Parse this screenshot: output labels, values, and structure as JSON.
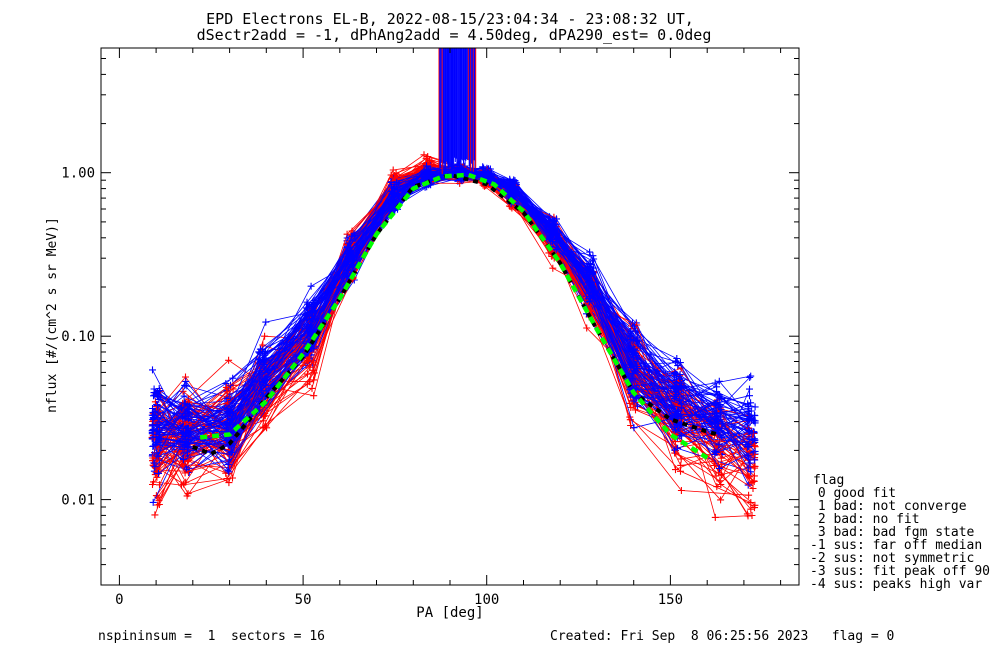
{
  "title": {
    "line1": "EPD Electrons EL-B, 2022-08-15/23:04:34 - 23:08:32 UT,",
    "line2": "dSectr2add = -1, dPhAng2add = 4.50deg, dPA290_est=   0.0deg"
  },
  "footer": {
    "left": "nspininsum =  1  sectors = 16",
    "right": "Created: Fri Sep  8 06:25:56 2023   flag = 0"
  },
  "flag_legend": {
    "heading": "flag",
    "items": [
      " 0 good fit",
      " 1 bad: not converge",
      " 2 bad: no fit",
      " 3 bad: bad fgm state",
      "-1 sus: far off median",
      "-2 sus: not symmetric",
      "-3 sus: fit peak off 90",
      "-4 sus: peaks high var"
    ]
  },
  "colors": {
    "red": "#ff0000",
    "blue": "#0000ff",
    "fit_green": "#00ff00",
    "median_black": "#000000",
    "axes": "#000000"
  },
  "chart_data": {
    "type": "line",
    "xlabel": "PA [deg]",
    "ylabel": "nflux [#/(cm^2 s sr MeV)]",
    "xlim": [
      -5,
      185
    ],
    "ylim": [
      0.003,
      5.8
    ],
    "yscale": "log",
    "xticks": [
      0,
      50,
      100,
      150
    ],
    "yticks": [
      0.01,
      0.1,
      1.0
    ],
    "ytick_labels": [
      "0.01",
      "0.10",
      "1.00"
    ],
    "grid": false,
    "pa_bins": [
      10,
      18,
      30,
      39,
      52,
      63,
      75,
      84,
      93,
      100,
      107,
      118,
      128,
      140,
      152,
      163,
      172
    ],
    "series": [
      {
        "color": "red",
        "count": 60,
        "base_profile": [
          0.021,
          0.026,
          0.025,
          0.05,
          0.1,
          0.3,
          0.82,
          1.05,
          1.0,
          0.93,
          0.72,
          0.37,
          0.2,
          0.057,
          0.03,
          0.022,
          0.018
        ],
        "spread": [
          0.42,
          0.38,
          0.36,
          0.35,
          0.3,
          0.18,
          0.12,
          0.08,
          0.06,
          0.06,
          0.08,
          0.14,
          0.22,
          0.34,
          0.36,
          0.38,
          0.42
        ]
      },
      {
        "color": "blue",
        "count": 90,
        "base_profile": [
          0.026,
          0.027,
          0.029,
          0.055,
          0.11,
          0.3,
          0.72,
          0.95,
          1.0,
          0.96,
          0.78,
          0.42,
          0.21,
          0.063,
          0.038,
          0.03,
          0.028
        ],
        "spread": [
          0.36,
          0.3,
          0.3,
          0.28,
          0.25,
          0.15,
          0.1,
          0.07,
          0.05,
          0.05,
          0.07,
          0.12,
          0.18,
          0.28,
          0.3,
          0.32,
          0.34
        ]
      }
    ],
    "fit_curve": {
      "color": "fit_green",
      "x": [
        22,
        30,
        40,
        50,
        60,
        70,
        80,
        88,
        95,
        102,
        110,
        120,
        130,
        140,
        150,
        160
      ],
      "y": [
        0.024,
        0.025,
        0.04,
        0.078,
        0.17,
        0.42,
        0.8,
        0.95,
        0.97,
        0.85,
        0.58,
        0.28,
        0.11,
        0.045,
        0.025,
        0.018
      ]
    },
    "median_curve": {
      "color": "median_black",
      "x": [
        20,
        25,
        30,
        35,
        40,
        50,
        60,
        70,
        80,
        90,
        100,
        110,
        120,
        130,
        140,
        150,
        160,
        163
      ],
      "y": [
        0.021,
        0.019,
        0.022,
        0.03,
        0.042,
        0.075,
        0.17,
        0.42,
        0.82,
        0.97,
        0.85,
        0.57,
        0.28,
        0.11,
        0.045,
        0.031,
        0.026,
        0.025
      ]
    },
    "spike_region": {
      "x": [
        87,
        97
      ],
      "colors": [
        "blue",
        "red"
      ]
    }
  }
}
